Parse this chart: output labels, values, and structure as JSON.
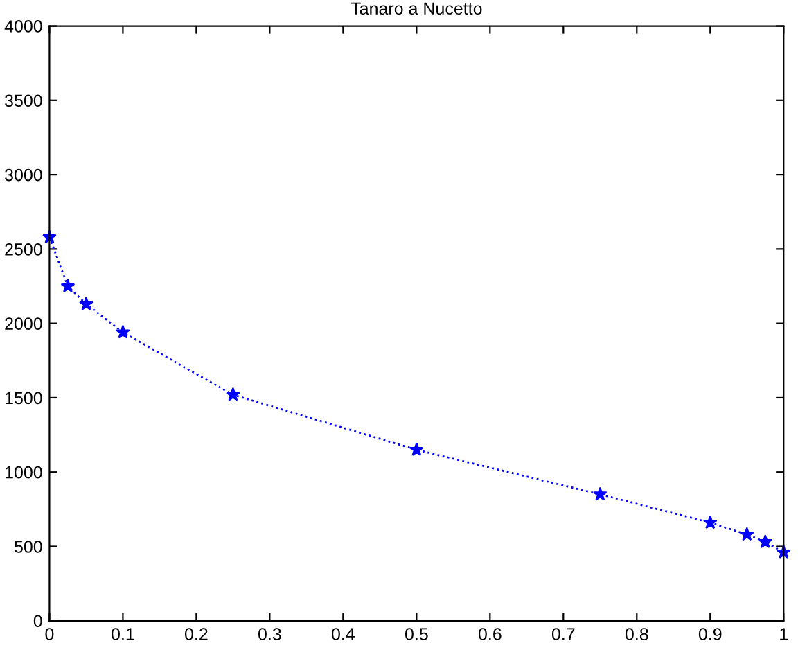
{
  "chart_data": {
    "type": "line",
    "title": "Tanaro a Nucetto",
    "x": [
      0,
      0.025,
      0.05,
      0.1,
      0.25,
      0.5,
      0.75,
      0.9,
      0.95,
      0.975,
      1
    ],
    "series": [
      {
        "color": "#0000ff",
        "values": [
          2580,
          2250,
          2130,
          1940,
          1520,
          1150,
          850,
          660,
          580,
          530,
          460
        ]
      }
    ],
    "marker": "star",
    "line_style": "dotted",
    "grid": false,
    "legend": false,
    "xlim": [
      0,
      1
    ],
    "xticks": [
      0,
      0.1,
      0.2,
      0.3,
      0.4,
      0.5,
      0.6,
      0.7,
      0.8,
      0.9,
      1
    ],
    "ylim": [
      0,
      4000
    ],
    "yticks": [
      0,
      500,
      1000,
      1500,
      2000,
      2500,
      3000,
      3500,
      4000
    ]
  }
}
